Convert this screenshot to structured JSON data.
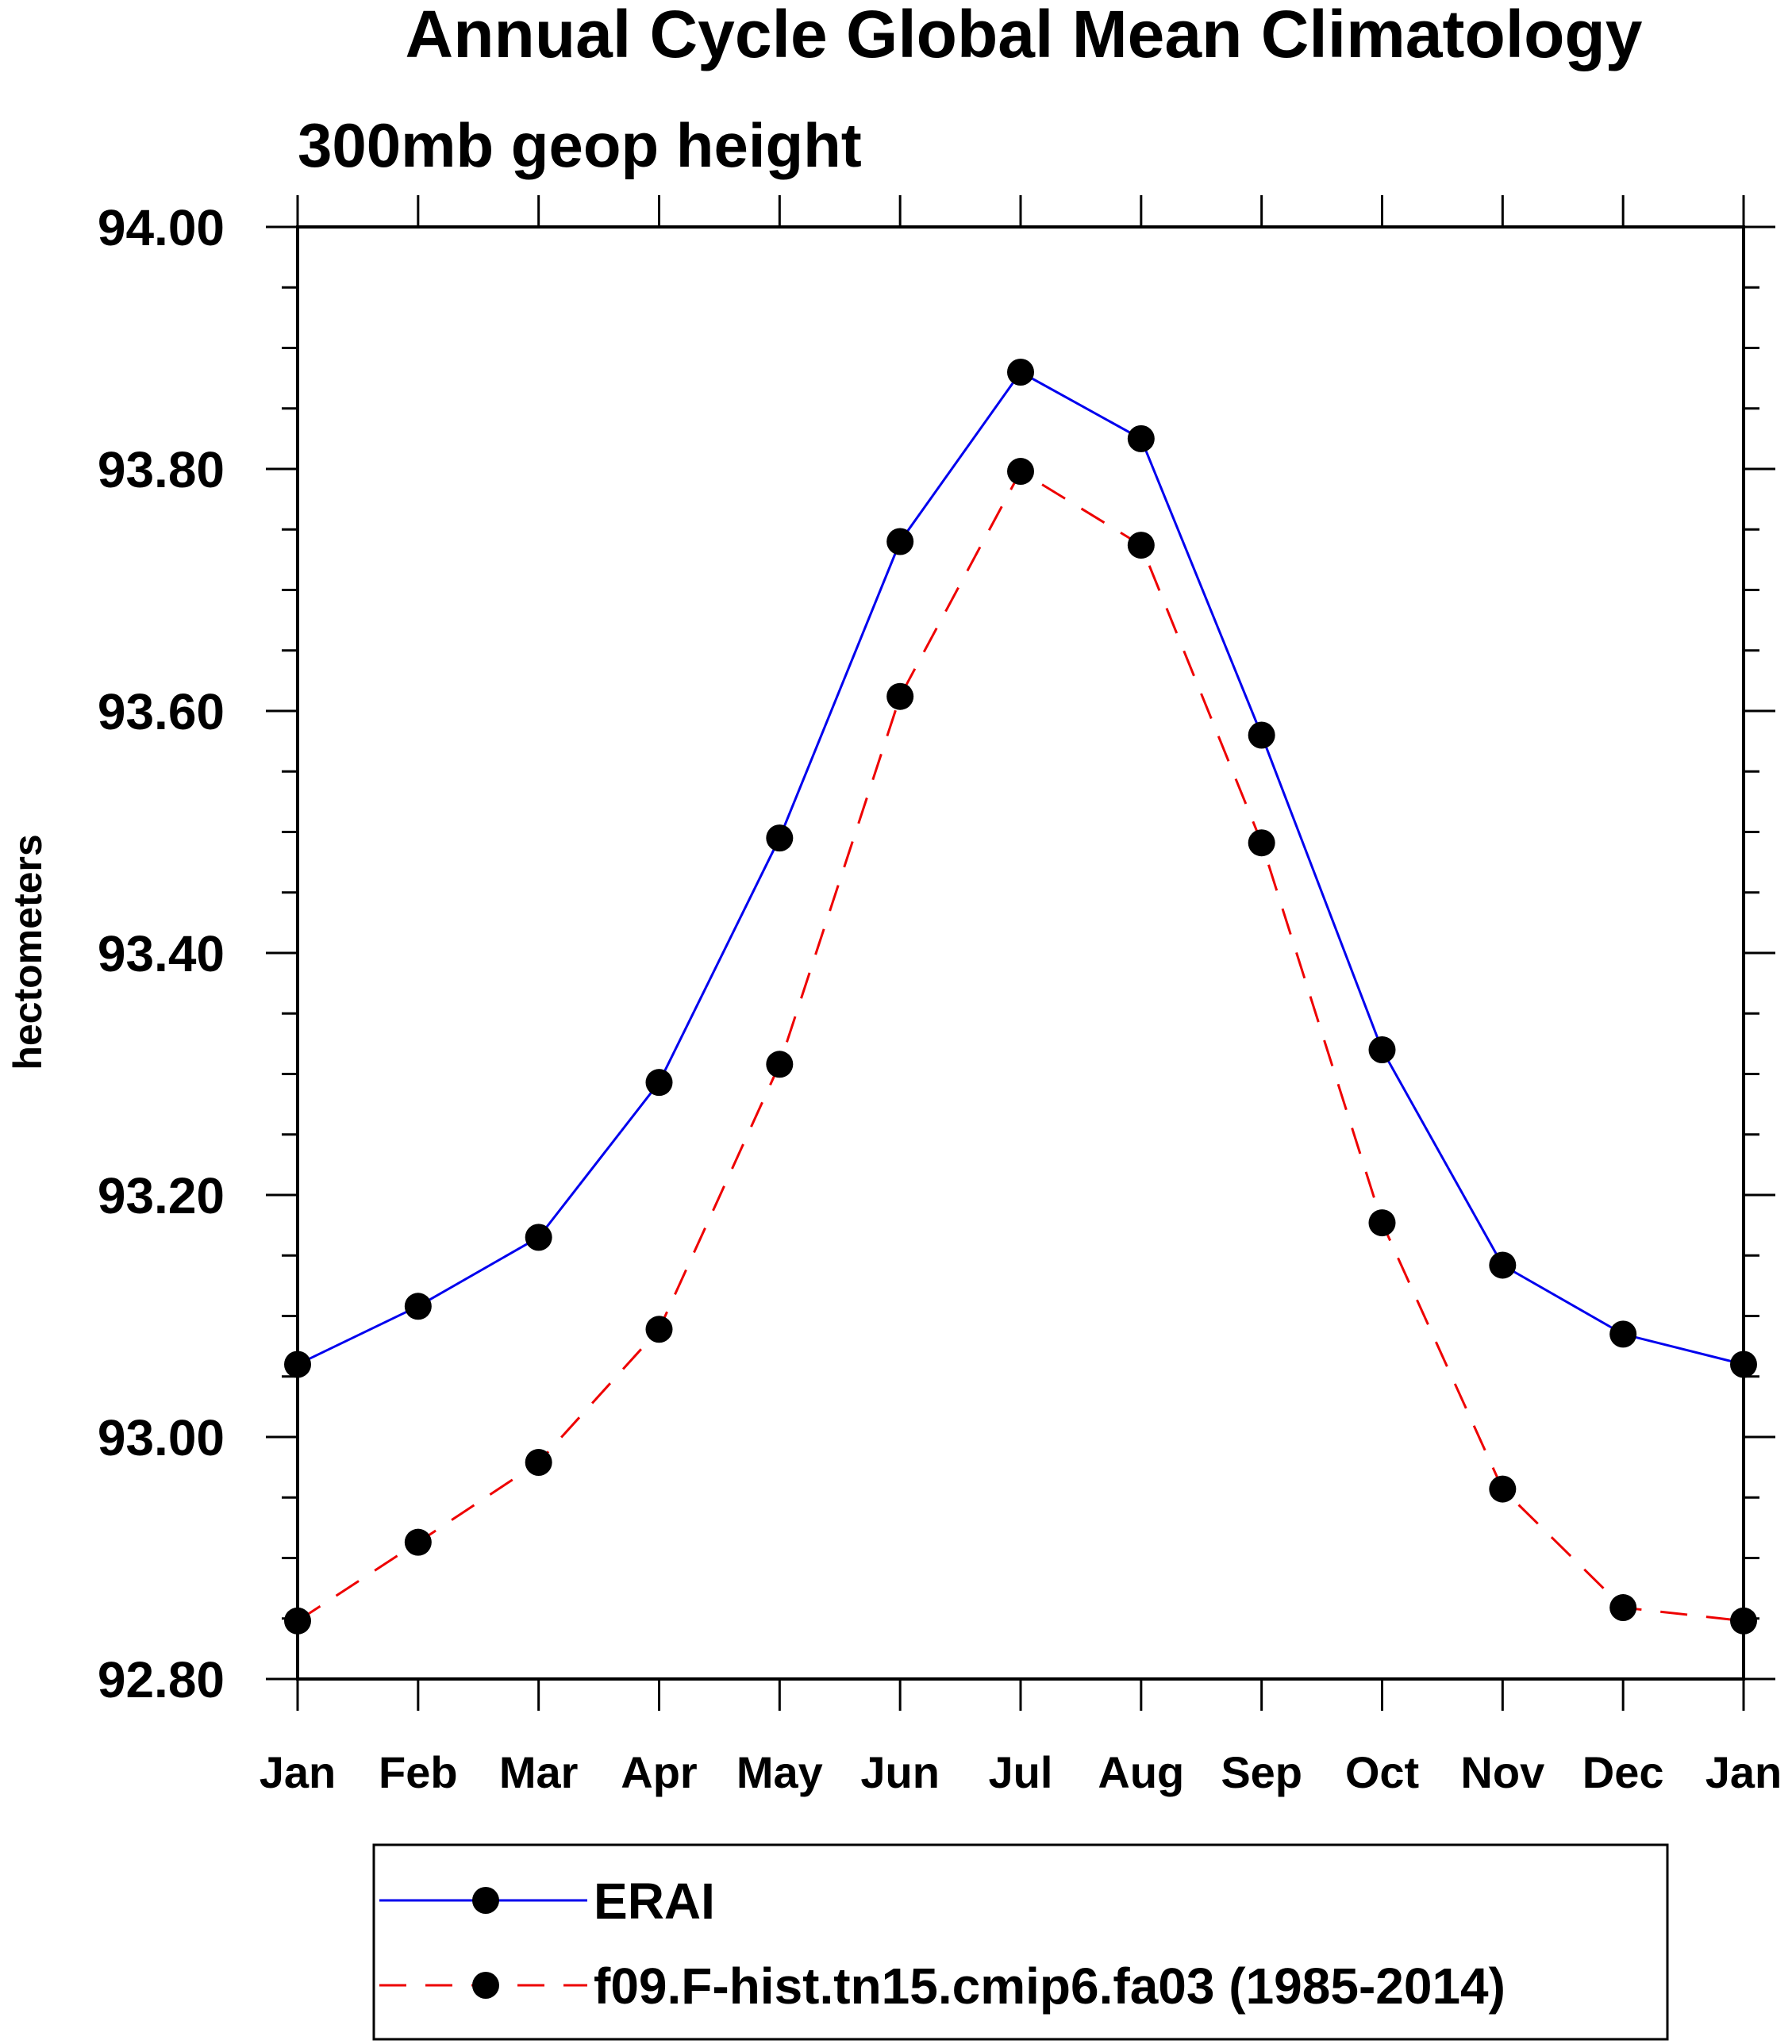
{
  "chart_data": {
    "type": "line",
    "title": "Annual Cycle Global Mean Climatology",
    "subtitle": "300mb geop height",
    "xlabel": "",
    "ylabel": "hectometers",
    "categories": [
      "Jan",
      "Feb",
      "Mar",
      "Apr",
      "May",
      "Jun",
      "Jul",
      "Aug",
      "Sep",
      "Oct",
      "Nov",
      "Dec",
      "Jan"
    ],
    "ylim": [
      92.8,
      94.0
    ],
    "yticks": [
      "92.80",
      "93.00",
      "93.20",
      "93.40",
      "93.60",
      "93.80",
      "94.00"
    ],
    "grid": false,
    "legend_position": "bottom",
    "series": [
      {
        "name": "ERAI",
        "color": "#0000ee",
        "line_style": "solid",
        "marker": "filled-circle",
        "values": [
          93.06,
          93.108,
          93.165,
          93.293,
          93.495,
          93.74,
          93.88,
          93.825,
          93.58,
          93.32,
          93.142,
          93.085,
          93.06
        ]
      },
      {
        "name": "f09.F-hist.tn15.cmip6.fa03 (1985-2014)",
        "color": "#ee0000",
        "line_style": "dashed",
        "marker": "filled-circle",
        "values": [
          92.848,
          92.913,
          92.979,
          93.089,
          93.308,
          93.612,
          93.798,
          93.737,
          93.491,
          93.177,
          92.957,
          92.859,
          92.848
        ]
      }
    ]
  }
}
